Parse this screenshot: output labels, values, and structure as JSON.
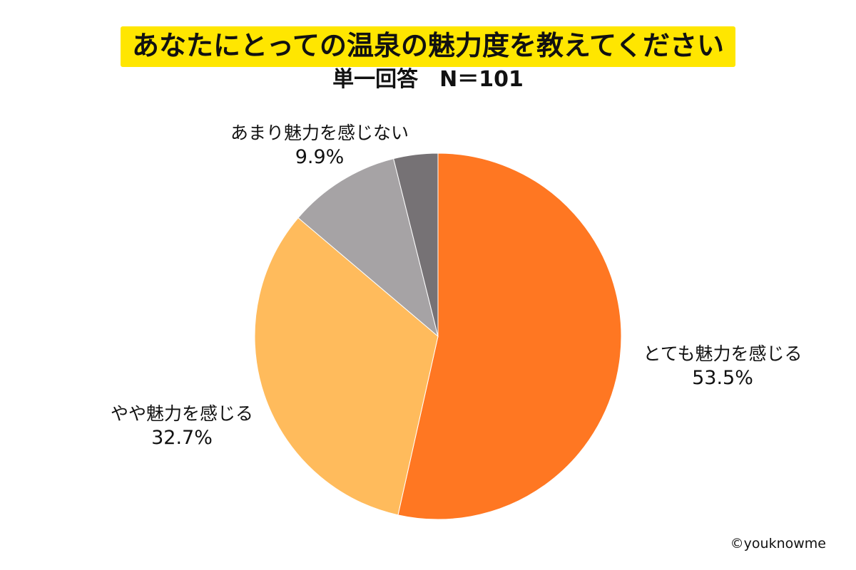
{
  "colors": {
    "title_highlight": "#ffe600",
    "slice_very": "#ff7722",
    "slice_somewhat": "#ffbb5c",
    "slice_not_much": "#a6a3a5",
    "slice_none": "#767275"
  },
  "chart_data": {
    "type": "pie",
    "title": "あなたにとっての温泉の魅力度を教えてください",
    "subtitle": "単一回答　N＝101",
    "start": "top",
    "direction": "clockwise",
    "slices": [
      {
        "label": "とても魅力を感じる",
        "value": 53.5,
        "value_label": "53.5%",
        "color": "#ff7722"
      },
      {
        "label": "やや魅力を感じる",
        "value": 32.7,
        "value_label": "32.7%",
        "color": "#ffbb5c"
      },
      {
        "label": "あまり魅力を感じない",
        "value": 9.9,
        "value_label": "9.9%",
        "color": "#a6a3a5"
      },
      {
        "label": "",
        "value": 3.9,
        "value_label": "",
        "color": "#767275"
      }
    ]
  },
  "credit": "©youknowme"
}
